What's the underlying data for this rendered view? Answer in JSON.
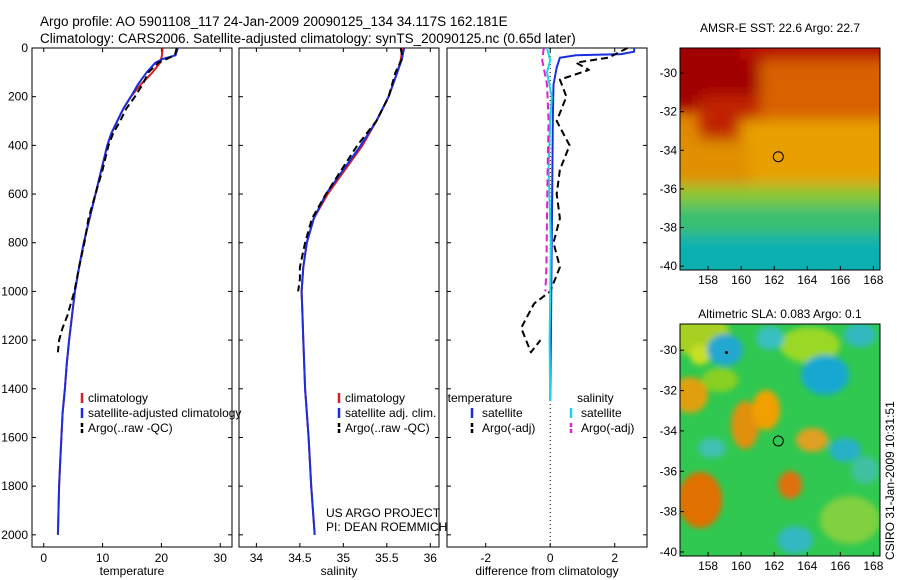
{
  "figure": {
    "title_line1": "Argo profile: AO 5901108_117 24-Jan-2009 20090125_134 34.117S 162.181E",
    "title_line2": "Climatology: CARS2006. Satellite-adjusted climatology: synTS_20090125.nc (0.65d later)",
    "credit_line1": "US ARGO PROJECT",
    "credit_line2": "PI: DEAN ROEMMICH",
    "timestamp": "CSIRO 31-Jan-2009 10:31:51"
  },
  "colors": {
    "climatology": "#d42020",
    "satellite": "#1a2ee0",
    "argo": "#000000",
    "sal_satellite": "#18d8e0",
    "sal_argo": "#e020d0"
  },
  "chart_data": [
    {
      "id": "temperature",
      "type": "line",
      "xlabel": "temperature",
      "xlim": [
        -2,
        32
      ],
      "ylim": [
        2050,
        0
      ],
      "xticks": [
        0,
        10,
        20,
        30
      ],
      "yticks": [
        0,
        200,
        400,
        600,
        800,
        1000,
        1200,
        1400,
        1600,
        1800,
        2000
      ],
      "legend": [
        "climatology",
        "satellite-adjusted climatology",
        "Argo(..raw -QC)"
      ],
      "series": [
        {
          "name": "climatology",
          "color_key": "climatology",
          "dash": false,
          "points": [
            [
              20.2,
              0
            ],
            [
              20.1,
              30
            ],
            [
              19.8,
              60
            ],
            [
              18.5,
              100
            ],
            [
              16.5,
              150
            ],
            [
              14.8,
              200
            ],
            [
              13.5,
              250
            ],
            [
              12.5,
              300
            ],
            [
              11.5,
              350
            ],
            [
              10.8,
              400
            ],
            [
              9.8,
              500
            ],
            [
              8.8,
              600
            ],
            [
              7.8,
              700
            ],
            [
              6.8,
              800
            ],
            [
              6.0,
              900
            ],
            [
              5.3,
              1000
            ],
            [
              4.8,
              1100
            ],
            [
              4.3,
              1200
            ],
            [
              3.9,
              1300
            ],
            [
              3.6,
              1400
            ],
            [
              3.2,
              1500
            ],
            [
              3.0,
              1600
            ],
            [
              2.8,
              1700
            ],
            [
              2.6,
              1800
            ],
            [
              2.5,
              1900
            ],
            [
              2.4,
              2000
            ]
          ]
        },
        {
          "name": "satellite-adjusted climatology",
          "color_key": "satellite",
          "dash": false,
          "points": [
            [
              22.8,
              0
            ],
            [
              22.6,
              15
            ],
            [
              22.4,
              30
            ],
            [
              20.2,
              45
            ],
            [
              19.0,
              60
            ],
            [
              17.5,
              100
            ],
            [
              16.0,
              150
            ],
            [
              14.8,
              200
            ],
            [
              13.5,
              250
            ],
            [
              12.5,
              300
            ],
            [
              11.5,
              350
            ],
            [
              10.8,
              400
            ],
            [
              9.8,
              500
            ],
            [
              8.8,
              600
            ],
            [
              7.8,
              700
            ],
            [
              6.8,
              800
            ],
            [
              6.0,
              900
            ],
            [
              5.3,
              1000
            ],
            [
              4.8,
              1100
            ],
            [
              4.3,
              1200
            ],
            [
              3.9,
              1300
            ],
            [
              3.6,
              1400
            ],
            [
              3.2,
              1500
            ],
            [
              3.0,
              1600
            ],
            [
              2.8,
              1700
            ],
            [
              2.6,
              1800
            ],
            [
              2.5,
              1900
            ],
            [
              2.4,
              2000
            ]
          ]
        },
        {
          "name": "Argo(..raw -QC)",
          "color_key": "argo",
          "dash": true,
          "points": [
            [
              22.6,
              0
            ],
            [
              22.3,
              30
            ],
            [
              19.5,
              60
            ],
            [
              17.8,
              100
            ],
            [
              16.8,
              150
            ],
            [
              15.5,
              200
            ],
            [
              14.0,
              250
            ],
            [
              13.0,
              300
            ],
            [
              11.8,
              350
            ],
            [
              11.0,
              400
            ],
            [
              10.0,
              500
            ],
            [
              8.8,
              600
            ],
            [
              7.6,
              700
            ],
            [
              6.9,
              800
            ],
            [
              6.0,
              900
            ],
            [
              5.2,
              1000
            ],
            [
              4.6,
              1050
            ],
            [
              4.0,
              1100
            ],
            [
              3.2,
              1150
            ],
            [
              2.6,
              1200
            ],
            [
              2.4,
              1250
            ]
          ]
        }
      ]
    },
    {
      "id": "salinity",
      "type": "line",
      "xlabel": "salinity",
      "xlim": [
        33.8,
        36.1
      ],
      "ylim": [
        2050,
        0
      ],
      "xticks": [
        34,
        34.5,
        35,
        35.5,
        36
      ],
      "xticklabels": [
        "34",
        "34.5",
        "35",
        "35.5",
        "36"
      ],
      "legend": [
        "climatology",
        "satellite adj. clim.",
        "Argo(..raw -QC)"
      ],
      "series": [
        {
          "name": "climatology",
          "color_key": "climatology",
          "dash": false,
          "points": [
            [
              35.68,
              0
            ],
            [
              35.66,
              50
            ],
            [
              35.62,
              100
            ],
            [
              35.52,
              200
            ],
            [
              35.38,
              300
            ],
            [
              35.22,
              400
            ],
            [
              35.02,
              500
            ],
            [
              34.82,
              600
            ],
            [
              34.66,
              700
            ],
            [
              34.58,
              800
            ],
            [
              34.54,
              900
            ],
            [
              34.52,
              1000
            ],
            [
              34.53,
              1100
            ],
            [
              34.54,
              1200
            ],
            [
              34.56,
              1400
            ],
            [
              34.6,
              1600
            ],
            [
              34.63,
              1800
            ],
            [
              34.67,
              2000
            ]
          ]
        },
        {
          "name": "satellite adj. clim.",
          "color_key": "satellite",
          "dash": false,
          "points": [
            [
              35.7,
              0
            ],
            [
              35.67,
              50
            ],
            [
              35.62,
              100
            ],
            [
              35.52,
              200
            ],
            [
              35.38,
              300
            ],
            [
              35.2,
              400
            ],
            [
              35.0,
              500
            ],
            [
              34.8,
              600
            ],
            [
              34.66,
              700
            ],
            [
              34.58,
              800
            ],
            [
              34.54,
              900
            ],
            [
              34.52,
              1000
            ],
            [
              34.53,
              1100
            ],
            [
              34.54,
              1200
            ],
            [
              34.56,
              1400
            ],
            [
              34.6,
              1600
            ],
            [
              34.63,
              1800
            ],
            [
              34.67,
              2000
            ]
          ]
        },
        {
          "name": "Argo(..raw -QC)",
          "color_key": "argo",
          "dash": true,
          "points": [
            [
              35.66,
              0
            ],
            [
              35.68,
              40
            ],
            [
              35.6,
              100
            ],
            [
              35.52,
              200
            ],
            [
              35.38,
              300
            ],
            [
              35.16,
              400
            ],
            [
              34.98,
              500
            ],
            [
              34.8,
              600
            ],
            [
              34.64,
              700
            ],
            [
              34.56,
              800
            ],
            [
              34.5,
              900
            ],
            [
              34.5,
              950
            ],
            [
              34.48,
              1000
            ]
          ]
        }
      ]
    },
    {
      "id": "difference",
      "type": "line",
      "xlabel": "difference from climatology",
      "xlim": [
        -3.2,
        3.0
      ],
      "ylim": [
        2050,
        0
      ],
      "xticks": [
        -2,
        0,
        2
      ],
      "legend_left_title": "temperature",
      "legend_left": [
        "satellite",
        "Argo(-adj)"
      ],
      "legend_right_title": "salinity",
      "legend_right": [
        "satellite",
        "Argo(-adj)"
      ],
      "series": [
        {
          "name": "temperature satellite",
          "color_key": "satellite",
          "dash": false,
          "points": [
            [
              2.6,
              0
            ],
            [
              2.6,
              15
            ],
            [
              2.2,
              25
            ],
            [
              0.8,
              30
            ],
            [
              0.3,
              40
            ],
            [
              0.2,
              80
            ],
            [
              0.1,
              150
            ],
            [
              0.08,
              300
            ],
            [
              0.06,
              600
            ],
            [
              0.04,
              900
            ],
            [
              0.02,
              1200
            ],
            [
              0.0,
              1450
            ]
          ]
        },
        {
          "name": "temperature Argo(-adj)",
          "color_key": "argo",
          "dash": true,
          "points": [
            [
              2.4,
              0
            ],
            [
              1.8,
              40
            ],
            [
              0.8,
              60
            ],
            [
              1.2,
              90
            ],
            [
              0.3,
              130
            ],
            [
              0.5,
              200
            ],
            [
              0.2,
              300
            ],
            [
              0.6,
              400
            ],
            [
              0.3,
              500
            ],
            [
              0.2,
              600
            ],
            [
              0.3,
              700
            ],
            [
              0.1,
              800
            ],
            [
              0.3,
              900
            ],
            [
              0.0,
              1000
            ],
            [
              -0.5,
              1050
            ],
            [
              -0.9,
              1150
            ],
            [
              -0.6,
              1250
            ],
            [
              -0.3,
              1200
            ]
          ]
        },
        {
          "name": "salinity satellite",
          "color_key": "sal_satellite",
          "dash": false,
          "points": [
            [
              -0.1,
              0
            ],
            [
              0.0,
              50
            ],
            [
              -0.1,
              100
            ],
            [
              0.05,
              200
            ],
            [
              0.0,
              300
            ],
            [
              -0.05,
              500
            ],
            [
              0.02,
              800
            ],
            [
              -0.02,
              1200
            ],
            [
              0.0,
              1450
            ]
          ]
        },
        {
          "name": "salinity Argo(-adj)",
          "color_key": "sal_argo",
          "dash": true,
          "points": [
            [
              -0.2,
              0
            ],
            [
              -0.25,
              50
            ],
            [
              -0.1,
              150
            ],
            [
              -0.05,
              300
            ],
            [
              -0.08,
              500
            ],
            [
              -0.1,
              700
            ],
            [
              -0.12,
              900
            ],
            [
              -0.15,
              1000
            ]
          ]
        }
      ]
    },
    {
      "id": "sst_map",
      "type": "heatmap",
      "title": "AMSR-E SST: 22.6 Argo: 22.7",
      "xlim": [
        156.3,
        168.4
      ],
      "ylim": [
        -40.2,
        -28.7
      ],
      "xticks": [
        158,
        160,
        162,
        164,
        166,
        168
      ],
      "yticks": [
        -30,
        -32,
        -34,
        -36,
        -38,
        -40
      ],
      "marker": {
        "lon": 162.18,
        "lat": -34.12
      }
    },
    {
      "id": "sla_map",
      "type": "heatmap",
      "title": "Altimetric SLA: 0.083 Argo: 0.1",
      "xlim": [
        156.3,
        168.4
      ],
      "ylim": [
        -40.2,
        -28.7
      ],
      "xticks": [
        158,
        160,
        162,
        164,
        166,
        168
      ],
      "yticks": [
        -30,
        -32,
        -34,
        -36,
        -38,
        -40
      ],
      "marker": {
        "lon": 162.18,
        "lat": -34.12
      }
    }
  ]
}
